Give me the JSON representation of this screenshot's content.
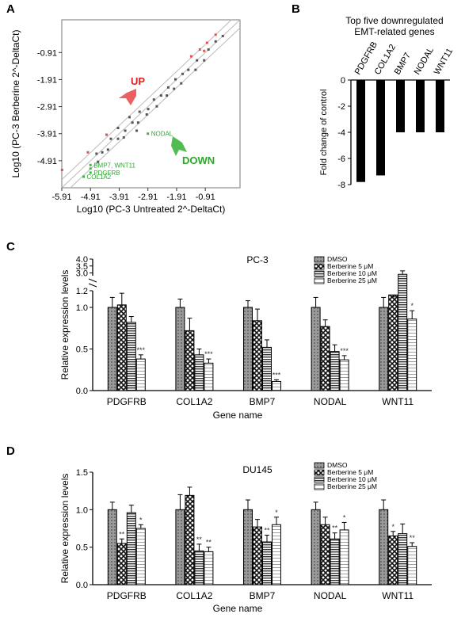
{
  "chart_data": [
    {
      "panel": "A",
      "type": "scatter",
      "xlabel": "Log10 (PC-3 Untreated 2^-DeltaCt)",
      "ylabel": "Log10 (PC-3 Berberine 2^-DeltaCt)",
      "x_ticks": [
        "-5.91",
        "-4.91",
        "-3.91",
        "-2.91",
        "-1.91",
        "-0.91"
      ],
      "y_ticks": [
        "-0.91",
        "-1.91",
        "-2.91",
        "-3.91",
        "-4.91"
      ],
      "xlim": [
        -5.91,
        0.3
      ],
      "ylim": [
        -5.91,
        0.3
      ],
      "up_label": "UP",
      "down_label": "DOWN",
      "annotations": [
        {
          "text": "NODAL",
          "x": -2.91,
          "y": -3.91
        },
        {
          "text": "BMP7, WNT11",
          "x": -4.91,
          "y": -5.07
        },
        {
          "text": "PDGFRB",
          "x": -4.91,
          "y": -5.35
        },
        {
          "text": "COL1A2",
          "x": -5.15,
          "y": -5.5
        }
      ],
      "points_gray": [
        [
          -0.3,
          -0.3
        ],
        [
          -0.55,
          -0.5
        ],
        [
          -0.8,
          -0.8
        ],
        [
          -0.95,
          -1.2
        ],
        [
          -1.2,
          -1.2
        ],
        [
          -1.25,
          -1.55
        ],
        [
          -1.5,
          -1.55
        ],
        [
          -1.7,
          -1.7
        ],
        [
          -1.75,
          -2.05
        ],
        [
          -1.95,
          -1.9
        ],
        [
          -2.0,
          -2.25
        ],
        [
          -2.2,
          -2.2
        ],
        [
          -2.25,
          -2.5
        ],
        [
          -2.45,
          -2.5
        ],
        [
          -2.6,
          -2.9
        ],
        [
          -2.7,
          -2.65
        ],
        [
          -2.9,
          -3.0
        ],
        [
          -2.95,
          -3.2
        ],
        [
          -3.2,
          -3.1
        ],
        [
          -3.25,
          -3.5
        ],
        [
          -3.45,
          -3.5
        ],
        [
          -3.55,
          -3.3
        ],
        [
          -3.7,
          -3.8
        ],
        [
          -3.75,
          -4.05
        ],
        [
          -3.95,
          -4.1
        ],
        [
          -4.2,
          -4.1
        ],
        [
          -4.3,
          -4.5
        ],
        [
          -4.5,
          -4.6
        ],
        [
          -4.7,
          -4.65
        ],
        [
          -4.65,
          -4.95
        ],
        [
          -3.95,
          -3.7
        ],
        [
          -3.3,
          -3.8
        ]
      ],
      "points_red": [
        [
          -0.55,
          -0.25
        ],
        [
          -0.85,
          -0.55
        ],
        [
          -0.95,
          -0.85
        ],
        [
          -1.1,
          -0.8
        ],
        [
          -1.4,
          -1.05
        ],
        [
          -4.35,
          -3.95
        ],
        [
          -5.9,
          -5.25
        ],
        [
          -5.0,
          -4.6
        ]
      ],
      "points_green": [
        [
          -2.91,
          -3.91
        ],
        [
          -4.91,
          -5.07
        ],
        [
          -4.91,
          -5.2
        ],
        [
          -4.91,
          -5.35
        ],
        [
          -5.15,
          -5.5
        ]
      ]
    },
    {
      "panel": "B",
      "type": "bar",
      "title": [
        "Top five downregulated",
        "EMT-related genes"
      ],
      "ylabel": "Fold change of control",
      "categories": [
        "PDGFRB",
        "COL1A2",
        "BMP7",
        "NODAL",
        "WNT11"
      ],
      "values": [
        -7.8,
        -7.3,
        -4.0,
        -4.0,
        -4.0
      ],
      "ylim": [
        -8,
        0
      ],
      "y_ticks": [
        "0",
        "-2",
        "-4",
        "-6",
        "-8"
      ]
    },
    {
      "panel": "C",
      "type": "bar",
      "title": "PC-3",
      "ylabel": "Relative expression levels",
      "xlabel": "Gene name",
      "categories": [
        "PDGFRB",
        "COL1A2",
        "BMP7",
        "NODAL",
        "WNT11"
      ],
      "y_ticks_low": [
        "0.0",
        "0.5",
        "1.0",
        "1.2"
      ],
      "y_ticks_high": [
        "3.0",
        "3.5",
        "4.0"
      ],
      "series": [
        {
          "name": "DMSO",
          "values": [
            1.0,
            1.0,
            1.0,
            1.0,
            1.0
          ],
          "errors": [
            0.12,
            0.1,
            0.08,
            0.12,
            0.12
          ]
        },
        {
          "name": "Berberine 5 μM",
          "values": [
            1.03,
            0.72,
            0.84,
            0.77,
            1.15
          ],
          "errors": [
            0.14,
            0.15,
            0.14,
            0.08,
            0.12
          ]
        },
        {
          "name": "Berberine 10 μM",
          "values": [
            0.82,
            0.43,
            0.52,
            0.47,
            2.9
          ],
          "errors": [
            0.07,
            0.07,
            0.09,
            0.08,
            0.25
          ]
        },
        {
          "name": "Berberine 25 μM",
          "values": [
            0.38,
            0.33,
            0.11,
            0.37,
            0.86
          ],
          "errors": [
            0.05,
            0.05,
            0.02,
            0.05,
            0.1
          ]
        }
      ],
      "significance": {
        "PDGFRB": "***",
        "COL1A2": "***",
        "BMP7": "***",
        "NODAL": "***",
        "WNT11": "*"
      }
    },
    {
      "panel": "D",
      "type": "bar",
      "title": "DU145",
      "ylabel": "Relative expression levels",
      "xlabel": "Gene name",
      "categories": [
        "PDGFRB",
        "COL1A2",
        "BMP7",
        "NODAL",
        "WNT11"
      ],
      "ylim": [
        0,
        1.5
      ],
      "y_ticks": [
        "0.0",
        "0.5",
        "1.0",
        "1.5"
      ],
      "series": [
        {
          "name": "DMSO",
          "values": [
            1.0,
            1.0,
            1.0,
            1.0,
            1.0
          ],
          "errors": [
            0.1,
            0.2,
            0.13,
            0.1,
            0.13
          ]
        },
        {
          "name": "Berberine 5 μM",
          "values": [
            0.55,
            1.19,
            0.77,
            0.8,
            0.65
          ],
          "errors": [
            0.06,
            0.11,
            0.1,
            0.1,
            0.06
          ]
        },
        {
          "name": "Berberine 10 μM",
          "values": [
            0.96,
            0.45,
            0.57,
            0.61,
            0.68
          ],
          "errors": [
            0.1,
            0.09,
            0.09,
            0.08,
            0.13
          ]
        },
        {
          "name": "Berberine 25 μM",
          "values": [
            0.75,
            0.44,
            0.8,
            0.73,
            0.51
          ],
          "errors": [
            0.05,
            0.06,
            0.1,
            0.1,
            0.05
          ]
        }
      ],
      "significance_5": [
        "**",
        "",
        "",
        "",
        "*"
      ],
      "significance_10": [
        "",
        "**",
        "**",
        "**",
        ""
      ],
      "significance_25": [
        "*",
        "**",
        "*",
        "*",
        "**"
      ]
    }
  ],
  "panel_letters": {
    "a": "A",
    "b": "B",
    "c": "C",
    "d": "D"
  }
}
